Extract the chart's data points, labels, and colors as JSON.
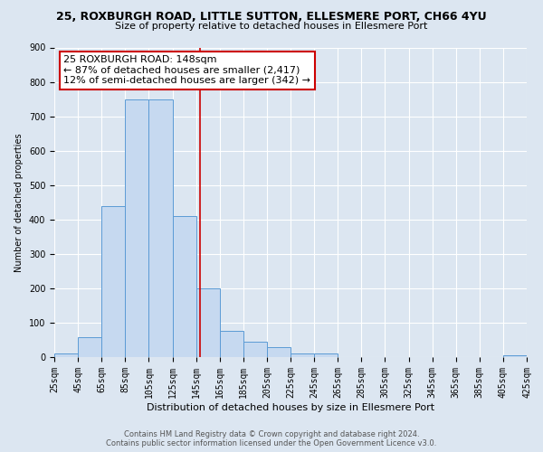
{
  "title": "25, ROXBURGH ROAD, LITTLE SUTTON, ELLESMERE PORT, CH66 4YU",
  "subtitle": "Size of property relative to detached houses in Ellesmere Port",
  "xlabel": "Distribution of detached houses by size in Ellesmere Port",
  "ylabel": "Number of detached properties",
  "bin_edges": [
    25,
    45,
    65,
    85,
    105,
    125,
    145,
    165,
    185,
    205,
    225,
    245,
    265,
    285,
    305,
    325,
    345,
    365,
    385,
    405,
    425
  ],
  "bar_heights": [
    10,
    58,
    438,
    750,
    750,
    410,
    200,
    77,
    45,
    30,
    10,
    10,
    0,
    0,
    0,
    0,
    0,
    0,
    0,
    5
  ],
  "bar_color": "#c6d9f0",
  "bar_edge_color": "#5b9bd5",
  "property_size": 148,
  "vline_color": "#cc0000",
  "annotation_line1": "25 ROXBURGH ROAD: 148sqm",
  "annotation_line2": "← 87% of detached houses are smaller (2,417)",
  "annotation_line3": "12% of semi-detached houses are larger (342) →",
  "annotation_box_color": "#ffffff",
  "annotation_border_color": "#cc0000",
  "ylim": [
    0,
    900
  ],
  "yticks": [
    0,
    100,
    200,
    300,
    400,
    500,
    600,
    700,
    800,
    900
  ],
  "footer_text": "Contains HM Land Registry data © Crown copyright and database right 2024.\nContains public sector information licensed under the Open Government Licence v3.0.",
  "bg_color": "#dce6f1",
  "plot_bg_color": "#dce6f1",
  "grid_color": "#ffffff",
  "title_fontsize": 9,
  "subtitle_fontsize": 8,
  "xlabel_fontsize": 8,
  "ylabel_fontsize": 7,
  "tick_fontsize": 7,
  "annotation_fontsize": 8,
  "footer_fontsize": 6
}
